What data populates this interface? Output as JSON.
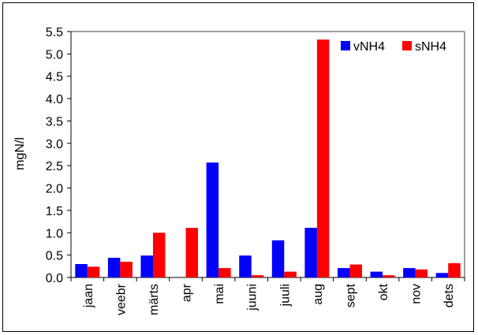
{
  "chart_data": {
    "type": "bar",
    "categories": [
      "jaan",
      "veebr",
      "märts",
      "apr",
      "mai",
      "juuni",
      "juuli",
      "aug",
      "sept",
      "okt",
      "nov",
      "dets"
    ],
    "series": [
      {
        "name": "vNH4",
        "color": "#0000FF",
        "values": [
          0.3,
          0.44,
          0.49,
          0.0,
          2.57,
          0.49,
          0.83,
          1.11,
          0.21,
          0.13,
          0.21,
          0.1
        ]
      },
      {
        "name": "sNH4",
        "color": "#FF0000",
        "values": [
          0.24,
          0.35,
          1.0,
          1.11,
          0.21,
          0.05,
          0.13,
          5.32,
          0.29,
          0.05,
          0.18,
          0.32
        ]
      }
    ],
    "title": "",
    "xlabel": "",
    "ylabel": "mgN/l",
    "ylim": [
      0,
      5.5
    ],
    "yticks": [
      "0.0",
      "0.5",
      "1.0",
      "1.5",
      "2.0",
      "2.5",
      "3.0",
      "3.5",
      "4.0",
      "4.5",
      "5.0",
      "5.5"
    ],
    "grid": false,
    "legend_position": "top-right"
  }
}
